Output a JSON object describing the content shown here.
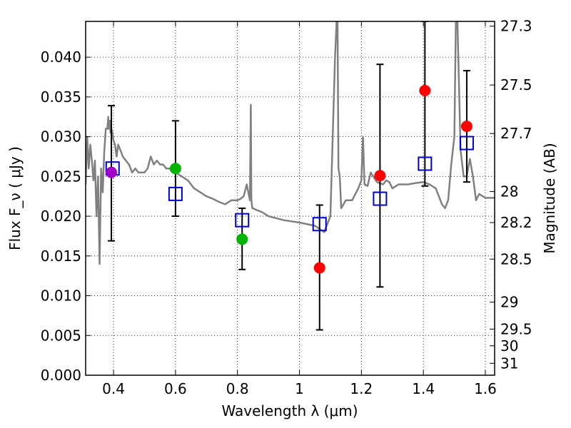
{
  "chart_data": {
    "type": "scatter",
    "xlabel": "Wavelength  λ (μm)",
    "ylabel": "Flux  F_ν  ( μJy )",
    "ylabel_right": "Magnitude (AB)",
    "xlim": [
      0.31,
      1.63
    ],
    "ylim": [
      0.0,
      0.0445
    ],
    "grid": true,
    "x_ticks": [
      0.4,
      0.6,
      0.8,
      1.0,
      1.2,
      1.4,
      1.6
    ],
    "x_tick_labels": [
      "0.4",
      "0.6",
      "0.8",
      "1",
      "1.2",
      "1.4",
      "1.6"
    ],
    "y_ticks": [
      0.0,
      0.005,
      0.01,
      0.015,
      0.02,
      0.025,
      0.03,
      0.035,
      0.04
    ],
    "y_tick_labels": [
      "0.000",
      "0.005",
      "0.010",
      "0.015",
      "0.020",
      "0.025",
      "0.030",
      "0.035",
      "0.040"
    ],
    "right_ticks": [
      {
        "label": "27.3",
        "flux": 0.0439
      },
      {
        "label": "27.5",
        "flux": 0.0365
      },
      {
        "label": "27.7",
        "flux": 0.0304
      },
      {
        "label": "28",
        "flux": 0.0231
      },
      {
        "label": "28.2",
        "flux": 0.0192
      },
      {
        "label": "28.5",
        "flux": 0.0146
      },
      {
        "label": "29",
        "flux": 0.0092
      },
      {
        "label": "29.5",
        "flux": 0.0058
      },
      {
        "label": "30",
        "flux": 0.0037
      },
      {
        "label": "31",
        "flux": 0.0015
      }
    ],
    "series": [
      {
        "name": "SED model",
        "kind": "line",
        "color": "#808080",
        "x": [
          0.31,
          0.315,
          0.32,
          0.325,
          0.33,
          0.335,
          0.34,
          0.345,
          0.35,
          0.355,
          0.36,
          0.365,
          0.37,
          0.375,
          0.38,
          0.383,
          0.385,
          0.388,
          0.39,
          0.393,
          0.396,
          0.4,
          0.405,
          0.41,
          0.415,
          0.42,
          0.43,
          0.44,
          0.45,
          0.46,
          0.47,
          0.48,
          0.49,
          0.5,
          0.51,
          0.52,
          0.53,
          0.54,
          0.55,
          0.56,
          0.57,
          0.58,
          0.6,
          0.62,
          0.64,
          0.66,
          0.68,
          0.7,
          0.72,
          0.74,
          0.76,
          0.78,
          0.8,
          0.81,
          0.82,
          0.83,
          0.84,
          0.843,
          0.845,
          0.848,
          0.85,
          0.86,
          0.88,
          0.9,
          0.95,
          1.0,
          1.05,
          1.08,
          1.1,
          1.115,
          1.12,
          1.123,
          1.126,
          1.13,
          1.135,
          1.15,
          1.17,
          1.19,
          1.2,
          1.205,
          1.21,
          1.22,
          1.23,
          1.25,
          1.27,
          1.28,
          1.29,
          1.3,
          1.32,
          1.35,
          1.38,
          1.4,
          1.42,
          1.44,
          1.45,
          1.46,
          1.47,
          1.48,
          1.49,
          1.5,
          1.505,
          1.51,
          1.52,
          1.53,
          1.54,
          1.55,
          1.56,
          1.57,
          1.58,
          1.6,
          1.63
        ],
        "y": [
          0.024,
          0.03,
          0.026,
          0.029,
          0.027,
          0.0245,
          0.027,
          0.02,
          0.025,
          0.014,
          0.026,
          0.023,
          0.028,
          0.031,
          0.031,
          0.0325,
          0.031,
          0.032,
          0.0305,
          0.031,
          0.0305,
          0.0295,
          0.029,
          0.0275,
          0.029,
          0.0285,
          0.0275,
          0.027,
          0.0265,
          0.0255,
          0.026,
          0.0255,
          0.0255,
          0.0255,
          0.026,
          0.0275,
          0.0265,
          0.027,
          0.0265,
          0.0265,
          0.026,
          0.026,
          0.0255,
          0.025,
          0.0245,
          0.0235,
          0.023,
          0.0225,
          0.0222,
          0.0218,
          0.0215,
          0.022,
          0.022,
          0.0222,
          0.0225,
          0.024,
          0.022,
          0.034,
          0.022,
          0.021,
          0.021,
          0.0208,
          0.0205,
          0.02,
          0.0195,
          0.0192,
          0.0188,
          0.018,
          0.02,
          0.04,
          0.0445,
          0.0445,
          0.026,
          0.025,
          0.021,
          0.022,
          0.022,
          0.0235,
          0.0245,
          0.03,
          0.024,
          0.0238,
          0.0255,
          0.0243,
          0.024,
          0.0245,
          0.0243,
          0.0235,
          0.024,
          0.024,
          0.0242,
          0.0243,
          0.024,
          0.0235,
          0.0225,
          0.0215,
          0.021,
          0.022,
          0.0265,
          0.03,
          0.0445,
          0.0445,
          0.0283,
          0.025,
          0.025,
          0.0272,
          0.025,
          0.022,
          0.0228,
          0.0223,
          0.0223
        ]
      },
      {
        "name": "Model photometry",
        "kind": "square",
        "color": "#0000cc",
        "x": [
          0.397,
          0.6,
          0.815,
          1.065,
          1.26,
          1.405,
          1.54
        ],
        "y": [
          0.026,
          0.0228,
          0.0195,
          0.019,
          0.0222,
          0.0266,
          0.0292
        ]
      },
      {
        "name": "Observed photometry",
        "kind": "point",
        "x": [
          0.393,
          0.6,
          0.815,
          1.065,
          1.26,
          1.405,
          1.54
        ],
        "y": [
          0.0255,
          0.026,
          0.0171,
          0.0135,
          0.0251,
          0.0358,
          0.0313
        ],
        "yerr_low": [
          0.0086,
          0.006,
          0.0038,
          0.0078,
          0.014,
          0.012,
          0.007
        ],
        "yerr_high": [
          0.0084,
          0.006,
          0.0039,
          0.0079,
          0.014,
          0.0087,
          0.007
        ],
        "colors": [
          "#a000c8",
          "#00b400",
          "#00b400",
          "#ff0000",
          "#ff0000",
          "#ff0000",
          "#ff0000"
        ]
      }
    ]
  }
}
